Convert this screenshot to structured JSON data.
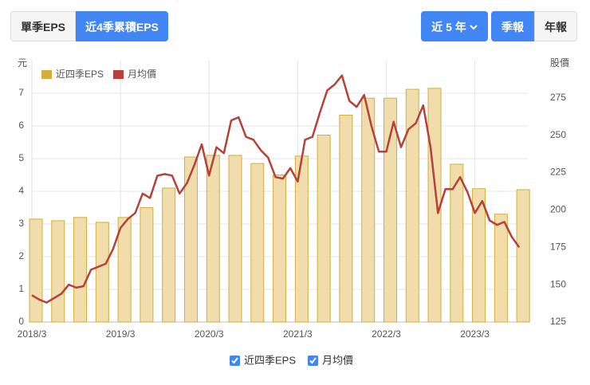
{
  "controls": {
    "tabs": [
      "單季EPS",
      "近4季累積EPS"
    ],
    "active_tab": 1,
    "range": "近 5 年",
    "reports": [
      "季報",
      "年報"
    ],
    "active_report": 0
  },
  "chart_data": {
    "type": "combo",
    "y_label": "元",
    "y2_label": "股價",
    "categories": [
      "2018/3",
      null,
      null,
      null,
      null,
      null,
      null,
      null,
      null,
      null,
      null,
      null,
      "2019/3",
      null,
      null,
      null,
      null,
      null,
      null,
      null,
      null,
      null,
      null,
      null,
      "2020/3",
      null,
      null,
      null,
      null,
      null,
      null,
      null,
      null,
      null,
      null,
      null,
      "2021/3",
      null,
      null,
      null,
      null,
      null,
      null,
      null,
      null,
      null,
      null,
      null,
      "2022/3",
      null,
      null,
      null,
      null,
      null,
      null,
      null,
      null,
      null,
      null,
      null,
      "2023/3",
      null,
      null,
      null,
      null,
      null,
      null
    ],
    "series": [
      {
        "name": "近四季EPS",
        "type": "bar",
        "color": "#d4ae3c",
        "fill": "#f1ddab",
        "values": [
          3.15,
          null,
          null,
          3.1,
          null,
          null,
          3.2,
          null,
          null,
          3.05,
          null,
          null,
          3.2,
          null,
          null,
          3.5,
          null,
          null,
          4.1,
          null,
          null,
          5.05,
          null,
          null,
          5.1,
          null,
          null,
          5.1,
          null,
          null,
          4.85,
          null,
          null,
          4.5,
          null,
          null,
          5.08,
          null,
          null,
          5.72,
          null,
          null,
          6.33,
          null,
          null,
          6.85,
          null,
          null,
          6.85,
          null,
          null,
          7.12,
          null,
          null,
          7.15,
          null,
          null,
          4.83,
          null,
          null,
          4.08,
          null,
          null,
          3.3,
          null,
          null,
          4.05
        ]
      },
      {
        "name": "月均價",
        "type": "line",
        "axis": "y2",
        "color": "#b5413a",
        "values": [
          143,
          140,
          138,
          141,
          144,
          150,
          148,
          149,
          160,
          162,
          164,
          174,
          188,
          194,
          198,
          211,
          208,
          223,
          224,
          223,
          211,
          218,
          230,
          244,
          223,
          242,
          238,
          260,
          262,
          249,
          247,
          240,
          235,
          222,
          221,
          228,
          219,
          247,
          249,
          265,
          280,
          284,
          290,
          273,
          269,
          277,
          256,
          239,
          239,
          259,
          242,
          254,
          258,
          270,
          242,
          198,
          214,
          214,
          222,
          212,
          198,
          206,
          193,
          190,
          192,
          182,
          175
        ]
      }
    ],
    "ylim": [
      0,
      8
    ],
    "yticks": [
      0,
      1,
      2,
      3,
      4,
      5,
      6,
      7
    ],
    "y2lim": [
      125,
      300
    ],
    "y2ticks": [
      125,
      150,
      175,
      200,
      225,
      250,
      275
    ],
    "grid": true
  }
}
